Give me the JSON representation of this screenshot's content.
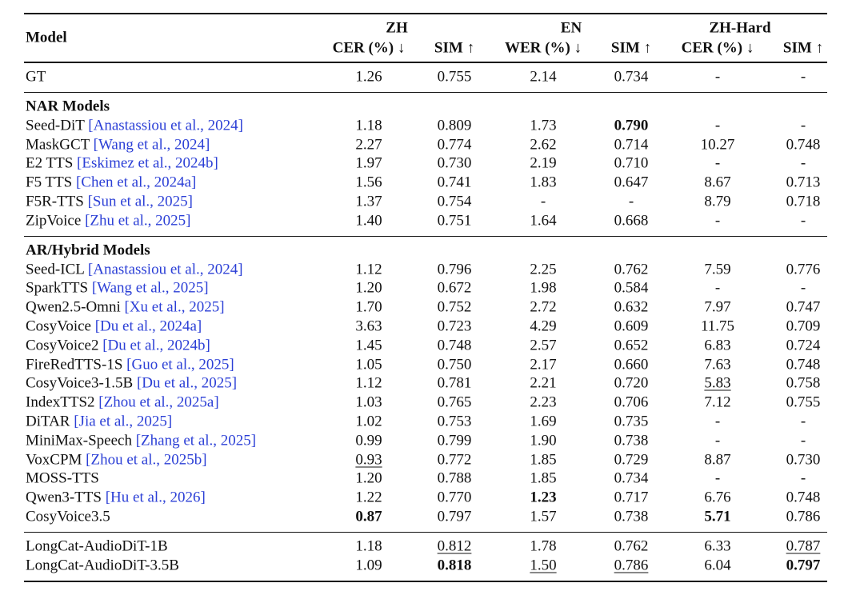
{
  "header": {
    "model": "Model",
    "groups": [
      {
        "name": "ZH",
        "columns": [
          "CER (%) ↓",
          "SIM ↑"
        ]
      },
      {
        "name": "EN",
        "columns": [
          "WER (%) ↓",
          "SIM ↑"
        ]
      },
      {
        "name": "ZH-Hard",
        "columns": [
          "CER (%) ↓",
          "SIM ↑"
        ]
      }
    ]
  },
  "sections": [
    {
      "rows": [
        {
          "model": "GT",
          "cells": [
            "1.26",
            "0.755",
            "2.14",
            "0.734",
            "-",
            "-"
          ]
        }
      ]
    },
    {
      "title": "NAR Models",
      "rows": [
        {
          "model": "Seed-DiT",
          "citation": "[Anastassiou et al., 2024]",
          "cells": [
            "1.18",
            "0.809",
            "1.73",
            {
              "text": "0.790",
              "bold": true
            },
            "-",
            "-"
          ]
        },
        {
          "model": "MaskGCT",
          "citation": "[Wang et al., 2024]",
          "cells": [
            "2.27",
            "0.774",
            "2.62",
            "0.714",
            "10.27",
            "0.748"
          ]
        },
        {
          "model": "E2 TTS",
          "citation": "[Eskimez et al., 2024b]",
          "cells": [
            "1.97",
            "0.730",
            "2.19",
            "0.710",
            "-",
            "-"
          ]
        },
        {
          "model": "F5 TTS",
          "citation": "[Chen et al., 2024a]",
          "cells": [
            "1.56",
            "0.741",
            "1.83",
            "0.647",
            "8.67",
            "0.713"
          ]
        },
        {
          "model": "F5R-TTS",
          "citation": "[Sun et al., 2025]",
          "cells": [
            "1.37",
            "0.754",
            "-",
            "-",
            "8.79",
            "0.718"
          ]
        },
        {
          "model": "ZipVoice",
          "citation": "[Zhu et al., 2025]",
          "cells": [
            "1.40",
            "0.751",
            "1.64",
            "0.668",
            "-",
            "-"
          ]
        }
      ]
    },
    {
      "title": "AR/Hybrid Models",
      "rows": [
        {
          "model": "Seed-ICL",
          "citation": "[Anastassiou et al., 2024]",
          "cells": [
            "1.12",
            "0.796",
            "2.25",
            "0.762",
            "7.59",
            "0.776"
          ]
        },
        {
          "model": "SparkTTS",
          "citation": "[Wang et al., 2025]",
          "cells": [
            "1.20",
            "0.672",
            "1.98",
            "0.584",
            "-",
            "-"
          ]
        },
        {
          "model": "Qwen2.5-Omni",
          "citation": "[Xu et al., 2025]",
          "cells": [
            "1.70",
            "0.752",
            "2.72",
            "0.632",
            "7.97",
            "0.747"
          ]
        },
        {
          "model": "CosyVoice",
          "citation": "[Du et al., 2024a]",
          "cells": [
            "3.63",
            "0.723",
            "4.29",
            "0.609",
            "11.75",
            "0.709"
          ]
        },
        {
          "model": "CosyVoice2",
          "citation": "[Du et al., 2024b]",
          "cells": [
            "1.45",
            "0.748",
            "2.57",
            "0.652",
            "6.83",
            "0.724"
          ]
        },
        {
          "model": "FireRedTTS-1S",
          "citation": "[Guo et al., 2025]",
          "cells": [
            "1.05",
            "0.750",
            "2.17",
            "0.660",
            "7.63",
            "0.748"
          ]
        },
        {
          "model": "CosyVoice3-1.5B",
          "citation": "[Du et al., 2025]",
          "cells": [
            "1.12",
            "0.781",
            "2.21",
            "0.720",
            {
              "text": "5.83",
              "underline": true
            },
            "0.758"
          ]
        },
        {
          "model": "IndexTTS2",
          "citation": "[Zhou et al., 2025a]",
          "cells": [
            "1.03",
            "0.765",
            "2.23",
            "0.706",
            "7.12",
            "0.755"
          ]
        },
        {
          "model": "DiTAR",
          "citation": "[Jia et al., 2025]",
          "cells": [
            "1.02",
            "0.753",
            "1.69",
            "0.735",
            "-",
            "-"
          ]
        },
        {
          "model": "MiniMax-Speech",
          "citation": "[Zhang et al., 2025]",
          "cells": [
            "0.99",
            "0.799",
            "1.90",
            "0.738",
            "-",
            "-"
          ]
        },
        {
          "model": "VoxCPM",
          "citation": "[Zhou et al., 2025b]",
          "cells": [
            {
              "text": "0.93",
              "underline": true
            },
            "0.772",
            "1.85",
            "0.729",
            "8.87",
            "0.730"
          ]
        },
        {
          "model": "MOSS-TTS",
          "cells": [
            "1.20",
            "0.788",
            "1.85",
            "0.734",
            "-",
            "-"
          ]
        },
        {
          "model": "Qwen3-TTS",
          "citation": "[Hu et al., 2026]",
          "cells": [
            "1.22",
            "0.770",
            {
              "text": "1.23",
              "bold": true
            },
            "0.717",
            "6.76",
            "0.748"
          ]
        },
        {
          "model": "CosyVoice3.5",
          "cells": [
            {
              "text": "0.87",
              "bold": true
            },
            "0.797",
            "1.57",
            "0.738",
            {
              "text": "5.71",
              "bold": true
            },
            "0.786"
          ]
        }
      ]
    },
    {
      "rows": [
        {
          "model": "LongCat-AudioDiT-1B",
          "cells": [
            "1.18",
            {
              "text": "0.812",
              "underline": true
            },
            "1.78",
            "0.762",
            "6.33",
            {
              "text": "0.787",
              "underline": true
            }
          ]
        },
        {
          "model": "LongCat-AudioDiT-3.5B",
          "cells": [
            "1.09",
            {
              "text": "0.818",
              "bold": true
            },
            {
              "text": "1.50",
              "underline": true
            },
            {
              "text": "0.786",
              "underline": true
            },
            "6.04",
            {
              "text": "0.797",
              "bold": true
            }
          ]
        }
      ]
    }
  ]
}
